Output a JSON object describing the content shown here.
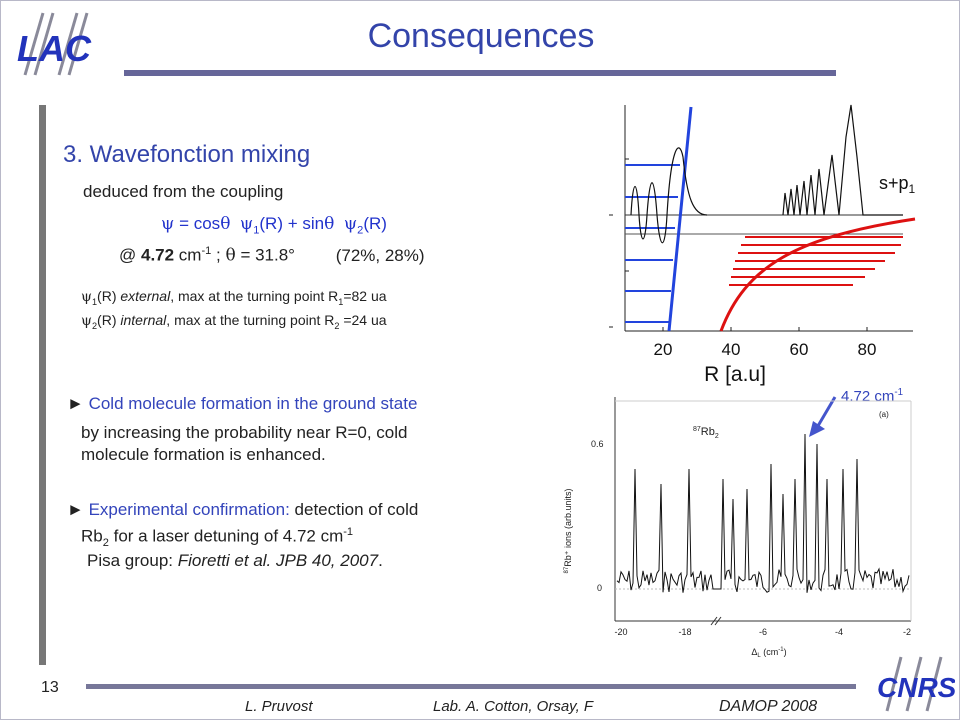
{
  "slide": {
    "title": "Consequences",
    "number": "13",
    "footer": {
      "author": "L. Pruvost",
      "lab": "Lab. A. Cotton, Orsay, F",
      "conference": "DAMOP 2008"
    },
    "logo_left": "LAC",
    "logo_right": "CNRS"
  },
  "content": {
    "heading": "3. Wavefonction mixing",
    "line1": "deduced from the coupling",
    "equation": {
      "psi": "ψ",
      "eq": " = cos",
      "theta": "θ",
      "psi1": "ψ",
      "sub1": "1",
      "r1": "(R)  +  sin",
      "theta2": "θ",
      "psi2": "ψ",
      "sub2": "2",
      "r2": "(R)"
    },
    "at_line": {
      "at": "@ ",
      "value": "4.72",
      "unit": " cm",
      "exp": "-1",
      "sep": " ; ",
      "theta": "θ",
      "angle": " = 31.8°",
      "pct": "(72%, 28%)"
    },
    "psi1_line": {
      "psi": "ψ",
      "sub": "1",
      "r": "(R) ",
      "kind": "external",
      "rest": ", max at the turning point  R",
      "rsub": "1",
      "val": "=82 ua"
    },
    "psi2_line": {
      "psi": "ψ",
      "sub": "2",
      "r": "(R) ",
      "kind": "internal",
      "rest": ", max at the turning point  R",
      "rsub": "2",
      "val": " =24 ua"
    },
    "cold": {
      "marker": "► ",
      "title": "Cold molecule formation in the ground state",
      "line1": "by increasing the probability near R=0, cold",
      "line2": "molecule formation is enhanced."
    },
    "exp": {
      "marker": "► ",
      "title": "Experimental confirmation:",
      "rest": " detection of cold",
      "rb": "Rb",
      "rb_sub": "2",
      "rest2": " for a laser detuning of 4.72 cm",
      "rest2_exp": "-1",
      "pisa": "Pisa group: ",
      "ref": "Fioretti et al. JPB 40, 2007",
      "dot": "."
    }
  },
  "figure_top": {
    "label": "s+p",
    "label_sub": "1",
    "xticks": [
      "20",
      "40",
      "60",
      "80"
    ],
    "xlabel": "R [a.u]"
  },
  "figure_bottom": {
    "annotation": "4.72 cm",
    "annotation_exp": "-1",
    "panel_label": "(a)",
    "species": "Rb",
    "species_sup": "87",
    "species_sub": "2",
    "ylabel": "Rb⁺ ions (arb.units)",
    "ylabel_sup": "87",
    "yticks": [
      "0.6",
      "0"
    ],
    "xticks": [
      "-20",
      "-18",
      "-6",
      "-4",
      "-2"
    ],
    "xlabel": "Δ",
    "xlabel_sub": "L",
    "xlabel_unit": " (cm",
    "xlabel_exp": "-1",
    "xlabel_close": ")"
  },
  "colors": {
    "title": "#3344aa",
    "accent_blue": "#2233cc",
    "red": "#dd1111"
  }
}
